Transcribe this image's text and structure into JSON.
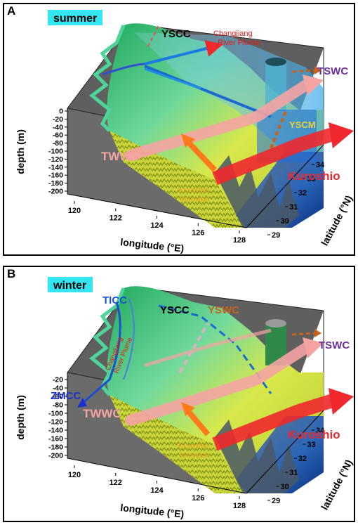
{
  "panels": [
    {
      "letter": "A",
      "season": "summer",
      "labels": {
        "yscc": "YSCC",
        "plume": [
          "Changjiang",
          "River Plume"
        ],
        "tswc": "TSWC",
        "yscm": "YSCM",
        "twwc": "TWWC",
        "kuroshio": "Kuroshio",
        "intrusion": [
          "Kuroshio",
          "Intrusion"
        ]
      }
    },
    {
      "letter": "B",
      "season": "winter",
      "labels": {
        "ticc": "TICC",
        "yscc": "YSCC",
        "yswc": "YSWC",
        "plume": [
          "Changjiang",
          "River Plume"
        ],
        "zmcc": "ZMCC",
        "tswc": "TSWC",
        "twwc": "TWWC",
        "kuroshio": "Kuroshio",
        "intrusion": [
          "Kuroshio",
          "Intrusion"
        ]
      }
    }
  ],
  "axes": {
    "depth_label": "depth (m)",
    "depth_ticks_a": [
      "0",
      "-20",
      "-40",
      "-60",
      "-80",
      "-100",
      "-120",
      "-140",
      "-160",
      "-180",
      "-200"
    ],
    "depth_ticks_b": [
      "-20",
      "-40",
      "-60",
      "-80",
      "-100",
      "-120",
      "-140",
      "-160",
      "-180",
      "-200"
    ],
    "lon_label": "longitude (°E)",
    "lon_ticks": [
      "120",
      "122",
      "124",
      "126",
      "128"
    ],
    "lat_label": "latitude (°N)",
    "lat_ticks": [
      "29",
      "30",
      "31",
      "32",
      "33",
      "34"
    ]
  },
  "colors": {
    "season_bg": "#33e6f0",
    "kuroshio": "#f0282d",
    "twwc": "#f5a3a3",
    "tswc": "#6a2e9a",
    "yswc": "#c8621e",
    "intrusion_text": "#e6a020",
    "intrusion_arrow": "#ff7a1a",
    "plume_text": "#e41a1c",
    "ticc": "#1a4fd0",
    "zmcc": "#1a2fd0"
  }
}
